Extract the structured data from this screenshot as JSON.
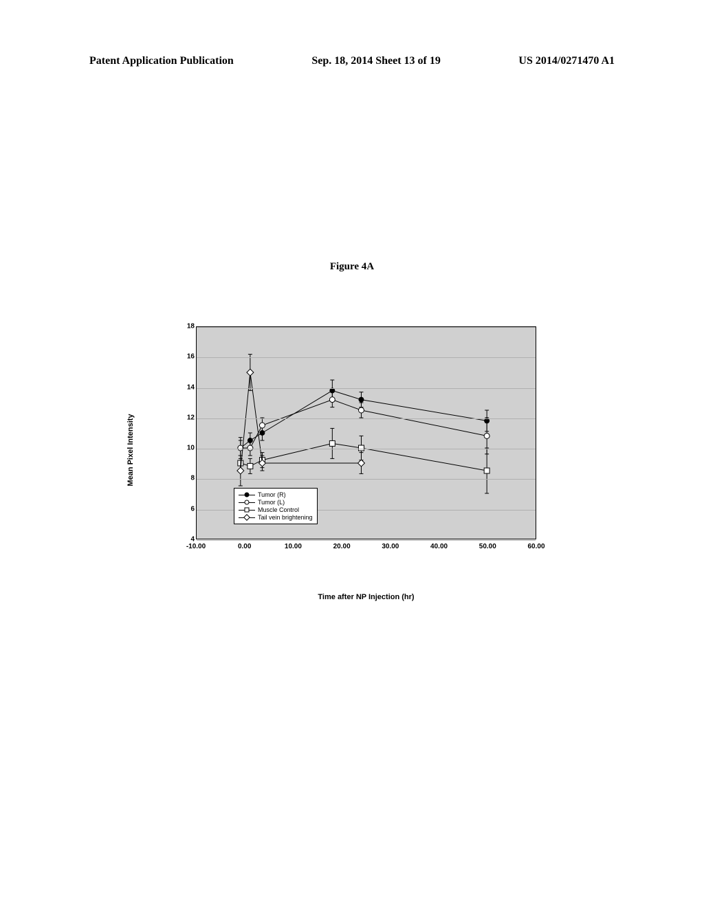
{
  "header": {
    "left": "Patent Application Publication",
    "center": "Sep. 18, 2014  Sheet 13 of 19",
    "right": "US 2014/0271470 A1"
  },
  "figure_title": "Figure 4A",
  "chart": {
    "type": "line",
    "ylabel": "Mean Pixel Intensity",
    "xlabel": "Time after NP Injection (hr)",
    "background_color": "#d0d0d0",
    "grid_color": "#b0b0b0",
    "ylim": [
      4,
      18
    ],
    "ytick_step": 2,
    "xlim": [
      -10,
      60
    ],
    "xticks": [
      -10.0,
      0.0,
      10.0,
      20.0,
      30.0,
      40.0,
      50.0,
      60.0
    ],
    "series": [
      {
        "name": "Tumor (R)",
        "marker": "circle-filled",
        "color": "#000000",
        "points": [
          {
            "x": -1,
            "y": 10
          },
          {
            "x": 1,
            "y": 10.5
          },
          {
            "x": 3.5,
            "y": 11
          },
          {
            "x": 18,
            "y": 13.8
          },
          {
            "x": 24,
            "y": 13.2
          },
          {
            "x": 50,
            "y": 11.8
          }
        ],
        "err": [
          0.7,
          0.5,
          0.5,
          0.7,
          0.5,
          0.7
        ]
      },
      {
        "name": "Tumor (L)",
        "marker": "circle-open",
        "color": "#000000",
        "points": [
          {
            "x": -1,
            "y": 10
          },
          {
            "x": 1,
            "y": 10
          },
          {
            "x": 3.5,
            "y": 11.5
          },
          {
            "x": 18,
            "y": 13.2
          },
          {
            "x": 24,
            "y": 12.5
          },
          {
            "x": 50,
            "y": 10.8
          }
        ],
        "err": [
          0.5,
          0.5,
          0.5,
          0.5,
          0.5,
          1.2
        ]
      },
      {
        "name": "Muscle Control",
        "marker": "square-open",
        "color": "#000000",
        "points": [
          {
            "x": -1,
            "y": 9
          },
          {
            "x": 1,
            "y": 8.8
          },
          {
            "x": 3.5,
            "y": 9.2
          },
          {
            "x": 18,
            "y": 10.3
          },
          {
            "x": 24,
            "y": 10
          },
          {
            "x": 50,
            "y": 8.5
          }
        ],
        "err": [
          0.5,
          0.5,
          0.5,
          1.0,
          0.8,
          1.5
        ]
      },
      {
        "name": "Tail vein brightening",
        "marker": "diamond-open",
        "color": "#000000",
        "points": [
          {
            "x": -1,
            "y": 8.5
          },
          {
            "x": 1,
            "y": 15
          },
          {
            "x": 3.5,
            "y": 9
          },
          {
            "x": 24,
            "y": 9
          }
        ],
        "err": [
          1.0,
          1.2,
          0.5,
          0.7
        ]
      }
    ]
  }
}
